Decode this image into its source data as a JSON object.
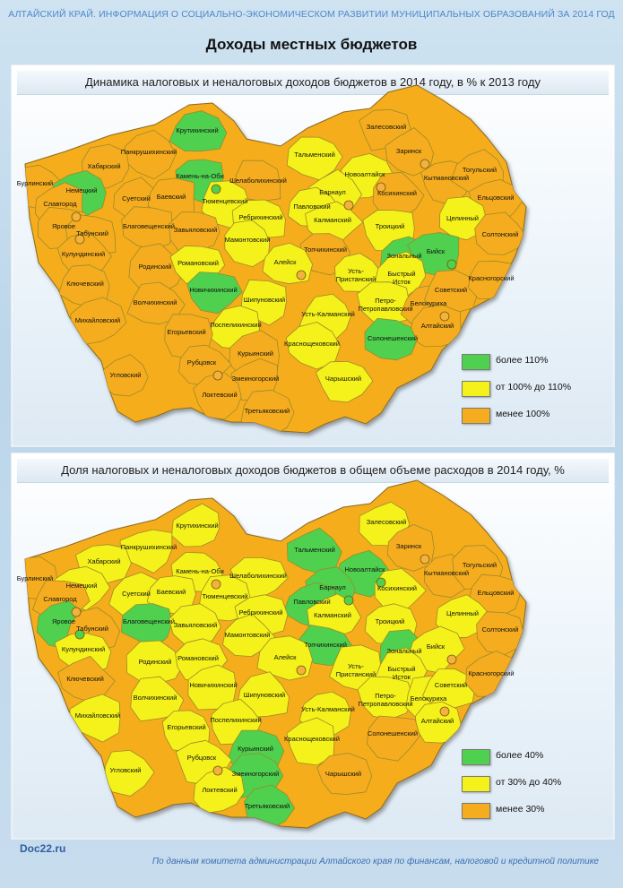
{
  "header": "АЛТАЙСКИЙ КРАЙ. ИНФОРМАЦИЯ О СОЦИАЛЬНО-ЭКОНОМИЧЕСКОМ РАЗВИТИИ МУНИЦИПАЛЬНЫХ ОБРАЗОВАНИЙ  ЗА 2014 ГОД",
  "main_title": "Доходы местных бюджетов",
  "colors": {
    "green": "#4fd04f",
    "yellow": "#f4f21a",
    "orange": "#f5ad1f",
    "city_marker": "#f2b23c"
  },
  "maps": [
    {
      "title": "Динамика налоговых и неналоговых доходов бюджетов  в 2014  году, в % к 2013  году",
      "legend": [
        {
          "label": "более 110%",
          "color": "#4fd04f"
        },
        {
          "label": "от 100% до 110%",
          "color": "#f4f21a"
        },
        {
          "label": "менее 100%",
          "color": "#f5ad1f"
        }
      ],
      "regions": [
        {
          "name": "Крутихинский",
          "category": "green"
        },
        {
          "name": "Камень-на-Оби",
          "category": "green"
        },
        {
          "name": "Залесовский",
          "category": "orange"
        },
        {
          "name": "Заринск",
          "category": "orange"
        },
        {
          "name": "Панкрушихинский",
          "category": "orange"
        },
        {
          "name": "Хабарский",
          "category": "orange"
        },
        {
          "name": "Бурлинский",
          "category": "orange"
        },
        {
          "name": "Немецкий",
          "category": "green"
        },
        {
          "name": "Славгород",
          "category": "orange"
        },
        {
          "name": "Яровое",
          "category": "orange"
        },
        {
          "name": "Табунский",
          "category": "orange"
        },
        {
          "name": "Суетский",
          "category": "orange"
        },
        {
          "name": "Баевский",
          "category": "orange"
        },
        {
          "name": "Тальменский",
          "category": "yellow"
        },
        {
          "name": "Шелаболихинский",
          "category": "orange"
        },
        {
          "name": "Тюменцевский",
          "category": "yellow"
        },
        {
          "name": "Новоалтайск",
          "category": "yellow"
        },
        {
          "name": "Барнаул",
          "category": "yellow"
        },
        {
          "name": "Косихинский",
          "category": "orange"
        },
        {
          "name": "Кытмановский",
          "category": "orange"
        },
        {
          "name": "Тогульский",
          "category": "orange"
        },
        {
          "name": "Ельцовский",
          "category": "orange"
        },
        {
          "name": "Павловский",
          "category": "yellow"
        },
        {
          "name": "Калманский",
          "category": "yellow"
        },
        {
          "name": "Ребрихинский",
          "category": "yellow"
        },
        {
          "name": "Благовещенский",
          "category": "orange"
        },
        {
          "name": "Кулундинский",
          "category": "orange"
        },
        {
          "name": "Завьяловский",
          "category": "orange"
        },
        {
          "name": "Мамонтовский",
          "category": "yellow"
        },
        {
          "name": "Топчихинский",
          "category": "orange"
        },
        {
          "name": "Троицкий",
          "category": "yellow"
        },
        {
          "name": "Целинный",
          "category": "yellow"
        },
        {
          "name": "Зональный",
          "category": "green"
        },
        {
          "name": "Бийск",
          "category": "green"
        },
        {
          "name": "Солтонский",
          "category": "orange"
        },
        {
          "name": "Родинский",
          "category": "orange"
        },
        {
          "name": "Романовский",
          "category": "yellow"
        },
        {
          "name": "Алейск",
          "category": "yellow"
        },
        {
          "name": "Усть-Пристанский",
          "category": "yellow"
        },
        {
          "name": "Быстрый Исток",
          "category": "yellow"
        },
        {
          "name": "Ключевский",
          "category": "orange"
        },
        {
          "name": "Новичихинский",
          "category": "green"
        },
        {
          "name": "Шипуновский",
          "category": "yellow"
        },
        {
          "name": "Петропавловский",
          "category": "yellow"
        },
        {
          "name": "Белокуриха",
          "category": "orange"
        },
        {
          "name": "Советский",
          "category": "orange"
        },
        {
          "name": "Красногорский",
          "category": "orange"
        },
        {
          "name": "Волчихинский",
          "category": "orange"
        },
        {
          "name": "Михайловский",
          "category": "orange"
        },
        {
          "name": "Усть-Калманский",
          "category": "yellow"
        },
        {
          "name": "Алтайский",
          "category": "orange"
        },
        {
          "name": "Поспелихинский",
          "category": "yellow"
        },
        {
          "name": "Егорьевский",
          "category": "orange"
        },
        {
          "name": "Солонешенский",
          "category": "green"
        },
        {
          "name": "Краснощековский",
          "category": "yellow"
        },
        {
          "name": "Курьинский",
          "category": "orange"
        },
        {
          "name": "Рубцовск",
          "category": "orange"
        },
        {
          "name": "Угловский",
          "category": "orange"
        },
        {
          "name": "Змеиногорский",
          "category": "orange"
        },
        {
          "name": "Чарышский",
          "category": "yellow"
        },
        {
          "name": "Локтевский",
          "category": "orange"
        },
        {
          "name": "Третьяковский",
          "category": "orange"
        }
      ]
    },
    {
      "title": "Доля налоговых и неналоговых доходов бюджетов  в общем объеме  расходов в 2014  году, %",
      "legend": [
        {
          "label": "более 40%",
          "color": "#4fd04f"
        },
        {
          "label": "от 30% до 40%",
          "color": "#f4f21a"
        },
        {
          "label": "менее 30%",
          "color": "#f5ad1f"
        }
      ],
      "regions": [
        {
          "name": "Крутихинский",
          "category": "yellow"
        },
        {
          "name": "Камень-на-Оби",
          "category": "yellow"
        },
        {
          "name": "Залесовский",
          "category": "yellow"
        },
        {
          "name": "Заринск",
          "category": "orange"
        },
        {
          "name": "Панкрушихинский",
          "category": "yellow"
        },
        {
          "name": "Хабарский",
          "category": "yellow"
        },
        {
          "name": "Бурлинский",
          "category": "orange"
        },
        {
          "name": "Немецкий",
          "category": "yellow"
        },
        {
          "name": "Славгород",
          "category": "orange"
        },
        {
          "name": "Яровое",
          "category": "green"
        },
        {
          "name": "Табунский",
          "category": "orange"
        },
        {
          "name": "Суетский",
          "category": "yellow"
        },
        {
          "name": "Баевский",
          "category": "yellow"
        },
        {
          "name": "Тальменский",
          "category": "green"
        },
        {
          "name": "Шелаболихинский",
          "category": "yellow"
        },
        {
          "name": "Тюменцевский",
          "category": "yellow"
        },
        {
          "name": "Новоалтайск",
          "category": "green"
        },
        {
          "name": "Барнаул",
          "category": "green"
        },
        {
          "name": "Косихинский",
          "category": "yellow"
        },
        {
          "name": "Кытмановский",
          "category": "orange"
        },
        {
          "name": "Тогульский",
          "category": "orange"
        },
        {
          "name": "Ельцовский",
          "category": "orange"
        },
        {
          "name": "Павловский",
          "category": "green"
        },
        {
          "name": "Калманский",
          "category": "yellow"
        },
        {
          "name": "Ребрихинский",
          "category": "yellow"
        },
        {
          "name": "Благовещенский",
          "category": "green"
        },
        {
          "name": "Кулундинский",
          "category": "yellow"
        },
        {
          "name": "Завьяловский",
          "category": "yellow"
        },
        {
          "name": "Мамонтовский",
          "category": "yellow"
        },
        {
          "name": "Топчихинский",
          "category": "green"
        },
        {
          "name": "Троицкий",
          "category": "yellow"
        },
        {
          "name": "Целинный",
          "category": "yellow"
        },
        {
          "name": "Зональный",
          "category": "green"
        },
        {
          "name": "Бийск",
          "category": "yellow"
        },
        {
          "name": "Солтонский",
          "category": "orange"
        },
        {
          "name": "Родинский",
          "category": "yellow"
        },
        {
          "name": "Романовский",
          "category": "yellow"
        },
        {
          "name": "Алейск",
          "category": "yellow"
        },
        {
          "name": "Усть-Пристанский",
          "category": "yellow"
        },
        {
          "name": "Быстрый Исток",
          "category": "yellow"
        },
        {
          "name": "Ключевский",
          "category": "orange"
        },
        {
          "name": "Новичихинский",
          "category": "yellow"
        },
        {
          "name": "Шипуновский",
          "category": "yellow"
        },
        {
          "name": "Петропавловский",
          "category": "yellow"
        },
        {
          "name": "Белокуриха",
          "category": "yellow"
        },
        {
          "name": "Советский",
          "category": "yellow"
        },
        {
          "name": "Красногорский",
          "category": "orange"
        },
        {
          "name": "Волчихинский",
          "category": "yellow"
        },
        {
          "name": "Михайловский",
          "category": "yellow"
        },
        {
          "name": "Усть-Калманский",
          "category": "yellow"
        },
        {
          "name": "Алтайский",
          "category": "yellow"
        },
        {
          "name": "Поспелихинский",
          "category": "yellow"
        },
        {
          "name": "Егорьевский",
          "category": "yellow"
        },
        {
          "name": "Солонешенский",
          "category": "orange"
        },
        {
          "name": "Краснощековский",
          "category": "yellow"
        },
        {
          "name": "Курьинский",
          "category": "green"
        },
        {
          "name": "Рубцовск",
          "category": "yellow"
        },
        {
          "name": "Угловский",
          "category": "yellow"
        },
        {
          "name": "Змеиногорский",
          "category": "green"
        },
        {
          "name": "Чарышский",
          "category": "orange"
        },
        {
          "name": "Локтевский",
          "category": "yellow"
        },
        {
          "name": "Третьяковский",
          "category": "green"
        }
      ]
    }
  ],
  "footer": {
    "site": "Doc22.ru",
    "source": "По данным  комитета администрации  Алтайского края по финансам,  налоговой и кредитной политике"
  }
}
